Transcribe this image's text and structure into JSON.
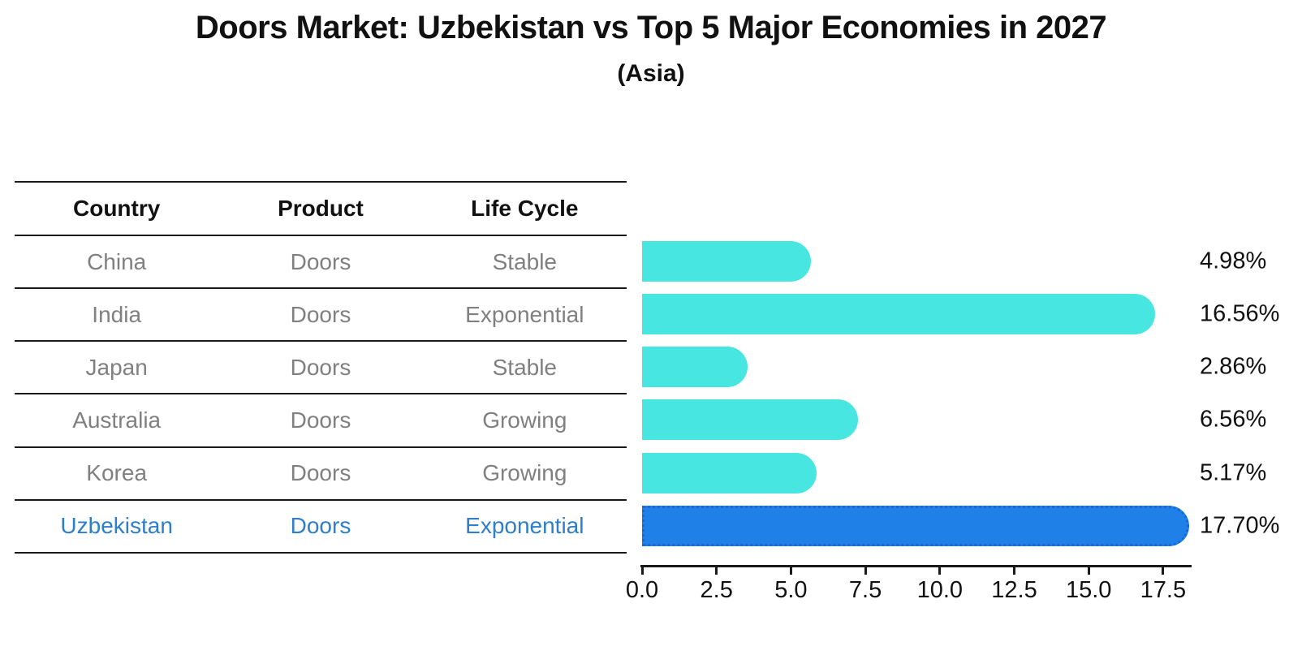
{
  "title": "Doors Market: Uzbekistan vs Top 5 Major Economies in 2027",
  "subtitle": "(Asia)",
  "table": {
    "headers": [
      "Country",
      "Product",
      "Life Cycle"
    ],
    "rows": [
      {
        "country": "China",
        "product": "Doors",
        "life_cycle": "Stable",
        "highlight": false
      },
      {
        "country": "India",
        "product": "Doors",
        "life_cycle": "Exponential",
        "highlight": false
      },
      {
        "country": "Japan",
        "product": "Doors",
        "life_cycle": "Stable",
        "highlight": false
      },
      {
        "country": "Australia",
        "product": "Doors",
        "life_cycle": "Growing",
        "highlight": false
      },
      {
        "country": "Korea",
        "product": "Doors",
        "life_cycle": "Growing",
        "highlight": false
      },
      {
        "country": "Uzbekistan",
        "product": "Doors",
        "life_cycle": "Exponential",
        "highlight": true
      }
    ]
  },
  "chart_data": {
    "type": "bar",
    "orientation": "horizontal",
    "title": "Doors Market: Uzbekistan vs Top 5 Major Economies in 2027",
    "subtitle": "(Asia)",
    "categories": [
      "China",
      "India",
      "Japan",
      "Australia",
      "Korea",
      "Uzbekistan"
    ],
    "values": [
      4.98,
      16.56,
      2.86,
      6.56,
      5.17,
      17.7
    ],
    "value_labels": [
      "4.98%",
      "16.56%",
      "2.86%",
      "6.56%",
      "5.17%",
      "17.70%"
    ],
    "highlight_index": 5,
    "x_ticks": [
      0.0,
      2.5,
      5.0,
      7.5,
      10.0,
      12.5,
      15.0,
      17.5
    ],
    "x_tick_labels": [
      "0.0",
      "2.5",
      "5.0",
      "7.5",
      "10.0",
      "12.5",
      "15.0",
      "17.5"
    ],
    "xlim": [
      0,
      18.5
    ],
    "grid": false,
    "legend": "none",
    "colors": {
      "default_bar": "#47E6E0",
      "highlight_bar": "#1F80E8",
      "highlight_bar_edge": "#1567DA",
      "highlight_text": "#2E7EC8",
      "row_text": "#808080",
      "header_text": "#111111",
      "axis": "#1a1a1a"
    }
  }
}
